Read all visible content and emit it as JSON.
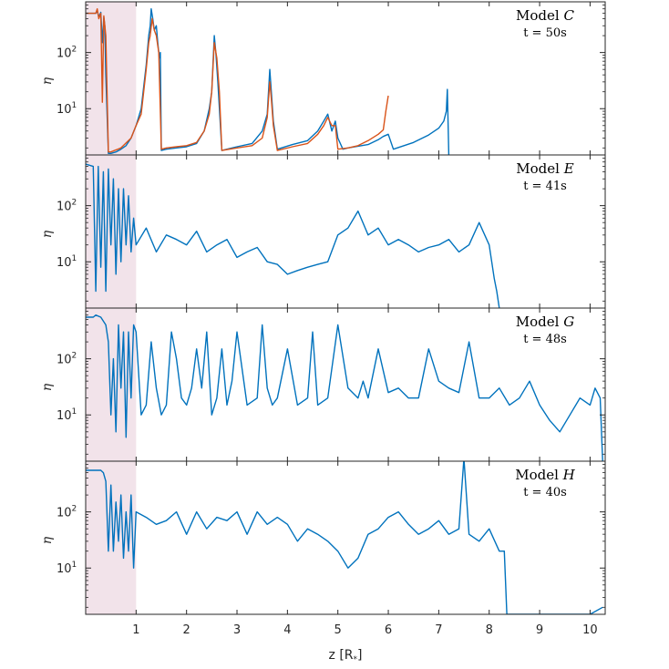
{
  "chart_data": {
    "type": "line",
    "xlabel": "z [R",
    "xlabel_sub": "*",
    "xlabel_close": "]",
    "ylabel": "η",
    "xlim": [
      0,
      10.3
    ],
    "ylim": [
      1.5,
      800
    ],
    "yscale": "log",
    "x_ticks": [
      1,
      2,
      3,
      4,
      5,
      6,
      7,
      8,
      9,
      10
    ],
    "x_tick_labels": [
      "1",
      "2",
      "3",
      "4",
      "5",
      "6",
      "7",
      "8",
      "9",
      "10"
    ],
    "y_ticks": [
      10,
      100
    ],
    "y_tick_base": "10",
    "y_tick_exponents": [
      "1",
      "2"
    ],
    "shaded_region": [
      0,
      1
    ],
    "colors": {
      "series1": "#0072bd",
      "series2": "#d95319",
      "shade": "#f2e3ea"
    },
    "panels": [
      {
        "model_prefix": "Model ",
        "model": "C",
        "time": "t = 50s",
        "series": [
          {
            "name": "blue",
            "x": [
              0,
              0.2,
              0.23,
              0.26,
              0.3,
              0.33,
              0.36,
              0.38,
              0.4,
              0.45,
              0.5,
              0.6,
              0.7,
              0.8,
              0.9,
              1.0,
              1.1,
              1.2,
              1.25,
              1.28,
              1.3,
              1.33,
              1.36,
              1.4,
              1.43,
              1.46,
              1.48,
              1.5,
              1.6,
              1.8,
              2.0,
              2.2,
              2.35,
              2.45,
              2.5,
              2.55,
              2.58,
              2.62,
              2.7,
              3.0,
              3.3,
              3.5,
              3.6,
              3.65,
              3.68,
              3.72,
              3.8,
              4.1,
              4.4,
              4.6,
              4.72,
              4.8,
              4.88,
              4.95,
              5.0,
              5.1,
              5.2,
              5.6,
              5.8,
              5.9,
              6.0,
              6.1,
              6.5,
              6.8,
              7.0,
              7.1,
              7.15,
              7.17,
              7.2
            ],
            "y": [
              500,
              500,
              550,
              430,
              520,
              150,
              420,
              300,
              40,
              1.6,
              1.6,
              1.7,
              1.9,
              2.2,
              3,
              5,
              10,
              60,
              200,
              300,
              600,
              400,
              250,
              300,
              150,
              80,
              100,
              1.8,
              1.9,
              2,
              2.1,
              2.4,
              4,
              10,
              20,
              200,
              100,
              30,
              1.8,
              2.1,
              2.4,
              4,
              8,
              50,
              20,
              6,
              1.9,
              2.3,
              2.7,
              4,
              6,
              8,
              4,
              6,
              3,
              1.9,
              2,
              2.3,
              2.8,
              3.2,
              3.5,
              1.9,
              2.5,
              3.4,
              4.5,
              6,
              9,
              22,
              1.5
            ]
          },
          {
            "name": "orange",
            "x": [
              0,
              0.2,
              0.23,
              0.26,
              0.3,
              0.33,
              0.36,
              0.4,
              0.45,
              0.5,
              0.7,
              0.9,
              1.0,
              1.1,
              1.2,
              1.25,
              1.28,
              1.32,
              1.36,
              1.4,
              1.45,
              1.5,
              1.6,
              1.8,
              2.0,
              2.2,
              2.35,
              2.45,
              2.5,
              2.55,
              2.6,
              2.65,
              2.7,
              3.0,
              3.3,
              3.5,
              3.6,
              3.65,
              3.68,
              3.72,
              3.8,
              4.1,
              4.4,
              4.6,
              4.72,
              4.8,
              4.88,
              4.95,
              5.0,
              5.2,
              5.4,
              5.6,
              5.8,
              5.9,
              5.95,
              6.0
            ],
            "y": [
              500,
              500,
              600,
              400,
              500,
              13,
              450,
              200,
              1.7,
              1.7,
              2,
              3,
              5,
              8,
              50,
              150,
              200,
              400,
              250,
              200,
              100,
              1.9,
              2,
              2.1,
              2.2,
              2.5,
              4,
              8,
              20,
              150,
              80,
              20,
              1.8,
              2,
              2.2,
              3,
              7,
              30,
              15,
              5,
              1.8,
              2.1,
              2.4,
              3.5,
              5,
              7,
              5,
              5,
              1.9,
              2,
              2.2,
              2.7,
              3.5,
              4.2,
              9,
              17
            ]
          }
        ]
      },
      {
        "model_prefix": "Model ",
        "model": "E",
        "time": "t = 41s",
        "series": [
          {
            "name": "blue",
            "x": [
              0,
              0.15,
              0.2,
              0.25,
              0.3,
              0.35,
              0.4,
              0.45,
              0.5,
              0.55,
              0.6,
              0.65,
              0.7,
              0.75,
              0.8,
              0.85,
              0.9,
              0.95,
              1.0,
              1.2,
              1.4,
              1.6,
              1.8,
              2.0,
              2.2,
              2.4,
              2.6,
              2.8,
              3.0,
              3.2,
              3.4,
              3.6,
              3.8,
              4.0,
              4.2,
              4.4,
              4.6,
              4.8,
              5.0,
              5.2,
              5.4,
              5.6,
              5.8,
              6.0,
              6.2,
              6.4,
              6.6,
              6.8,
              7.0,
              7.2,
              7.4,
              7.6,
              7.8,
              8.0,
              8.05,
              8.1,
              8.15,
              8.2
            ],
            "y": [
              550,
              500,
              3,
              500,
              8,
              400,
              3,
              450,
              20,
              300,
              6,
              200,
              10,
              200,
              20,
              150,
              15,
              60,
              20,
              40,
              15,
              30,
              25,
              20,
              35,
              15,
              20,
              25,
              12,
              15,
              18,
              10,
              9,
              6,
              7,
              8,
              9,
              10,
              30,
              40,
              80,
              30,
              40,
              20,
              25,
              20,
              15,
              18,
              20,
              25,
              15,
              20,
              50,
              20,
              10,
              5,
              3,
              1.5
            ]
          }
        ]
      },
      {
        "model_prefix": "Model ",
        "model": "G",
        "time": "t = 48s",
        "series": [
          {
            "name": "blue",
            "x": [
              0,
              0.15,
              0.2,
              0.3,
              0.4,
              0.45,
              0.5,
              0.55,
              0.6,
              0.65,
              0.7,
              0.75,
              0.8,
              0.85,
              0.9,
              0.95,
              1.0,
              1.1,
              1.2,
              1.3,
              1.4,
              1.5,
              1.6,
              1.7,
              1.8,
              1.9,
              2.0,
              2.1,
              2.2,
              2.3,
              2.4,
              2.5,
              2.6,
              2.7,
              2.8,
              2.9,
              3.0,
              3.2,
              3.4,
              3.5,
              3.6,
              3.7,
              3.8,
              4.0,
              4.2,
              4.4,
              4.5,
              4.6,
              4.8,
              5.0,
              5.2,
              5.4,
              5.5,
              5.6,
              5.8,
              6.0,
              6.2,
              6.4,
              6.6,
              6.8,
              7.0,
              7.2,
              7.4,
              7.6,
              7.8,
              8.0,
              8.2,
              8.4,
              8.6,
              8.8,
              9.0,
              9.2,
              9.4,
              9.6,
              9.8,
              10.0,
              10.1,
              10.2,
              10.25
            ],
            "y": [
              550,
              550,
              600,
              550,
              400,
              200,
              10,
              100,
              5,
              400,
              30,
              300,
              4,
              300,
              20,
              400,
              300,
              10,
              15,
              200,
              30,
              10,
              15,
              300,
              100,
              20,
              15,
              30,
              150,
              30,
              300,
              10,
              20,
              150,
              15,
              40,
              300,
              15,
              20,
              400,
              30,
              15,
              20,
              150,
              15,
              20,
              300,
              15,
              20,
              400,
              30,
              20,
              40,
              20,
              150,
              25,
              30,
              20,
              20,
              150,
              40,
              30,
              25,
              200,
              20,
              20,
              30,
              15,
              20,
              40,
              15,
              8,
              5,
              10,
              20,
              15,
              30,
              20,
              1.2
            ]
          }
        ]
      },
      {
        "model_prefix": "Model ",
        "model": "H",
        "time": "t = 40s",
        "series": [
          {
            "name": "blue",
            "x": [
              0,
              0.3,
              0.35,
              0.4,
              0.45,
              0.5,
              0.55,
              0.6,
              0.65,
              0.7,
              0.75,
              0.8,
              0.85,
              0.9,
              0.95,
              1.0,
              1.2,
              1.4,
              1.6,
              1.8,
              2.0,
              2.2,
              2.4,
              2.6,
              2.8,
              3.0,
              3.2,
              3.4,
              3.6,
              3.8,
              4.0,
              4.2,
              4.4,
              4.6,
              4.8,
              5.0,
              5.2,
              5.4,
              5.6,
              5.8,
              6.0,
              6.2,
              6.4,
              6.6,
              6.8,
              7.0,
              7.2,
              7.4,
              7.5,
              7.6,
              7.8,
              8.0,
              8.2,
              8.3,
              8.35,
              8.4,
              9.0,
              10.0,
              10.25
            ],
            "y": [
              550,
              550,
              500,
              350,
              20,
              300,
              20,
              150,
              30,
              200,
              15,
              100,
              20,
              200,
              10,
              100,
              80,
              60,
              70,
              100,
              40,
              100,
              50,
              80,
              70,
              100,
              40,
              100,
              60,
              80,
              60,
              30,
              50,
              40,
              30,
              20,
              10,
              15,
              40,
              50,
              80,
              100,
              60,
              40,
              50,
              70,
              40,
              50,
              900,
              40,
              30,
              50,
              20,
              20,
              1.2,
              1.2,
              1.2,
              1.2,
              2
            ]
          }
        ]
      }
    ]
  }
}
